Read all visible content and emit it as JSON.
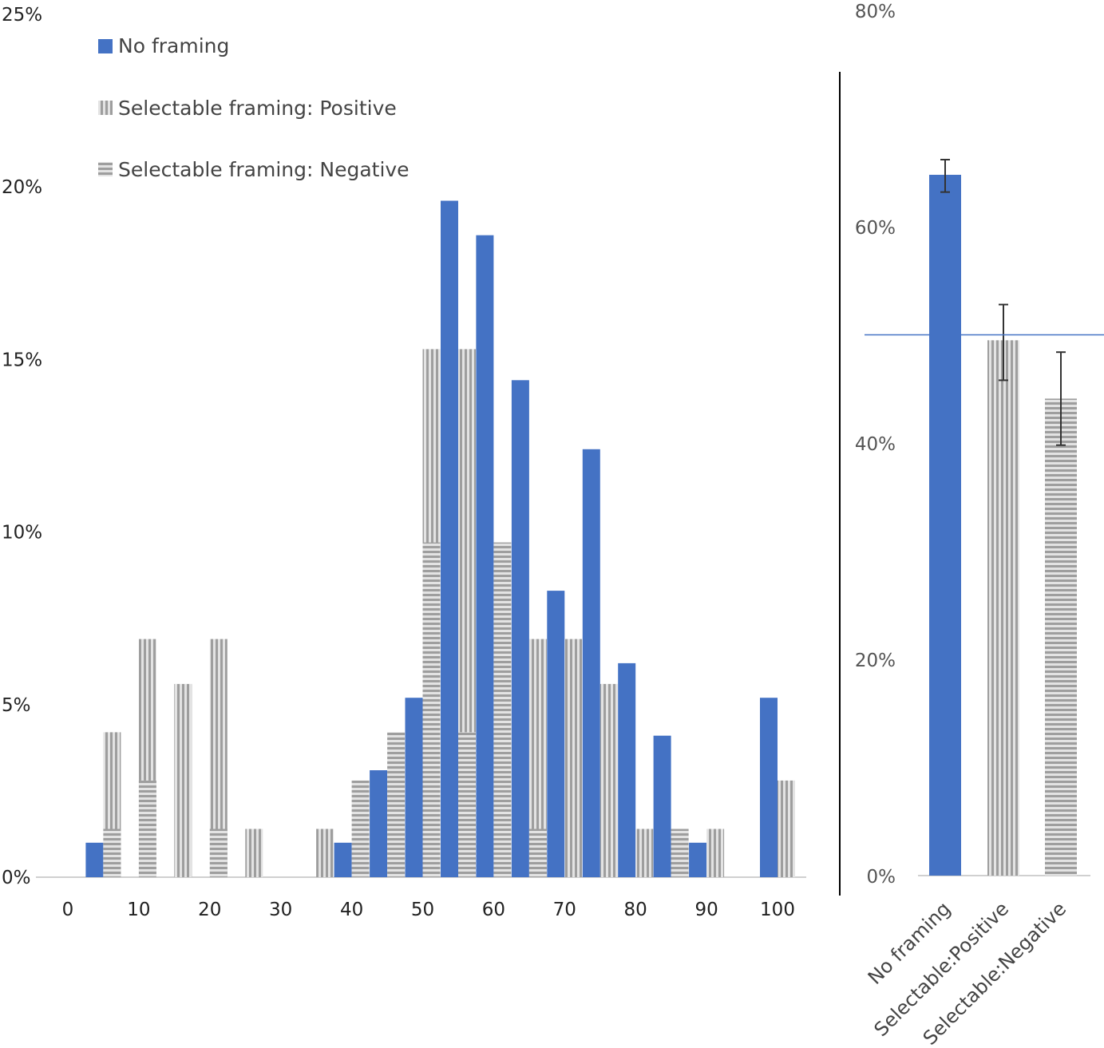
{
  "colors": {
    "no_framing": "#4472C4",
    "positive_fill": "#A6A6A6",
    "negative_fill": "#A6A6A6",
    "stripe_light": "#E3E3E3",
    "axis": "#D0D0D0",
    "reference_line": "#4472C4"
  },
  "chart_data": [
    {
      "type": "bar",
      "legend": {
        "placement": "top-left",
        "entries": [
          {
            "label": "No framing",
            "series": "no_framing"
          },
          {
            "label": "Selectable framing: Positive",
            "series": "positive"
          },
          {
            "label": "Selectable framing: Negative",
            "series": "negative"
          }
        ]
      },
      "x_ticks": [
        "0",
        "10",
        "20",
        "30",
        "40",
        "50",
        "60",
        "70",
        "80",
        "90",
        "100"
      ],
      "y_ticks": [
        "0%",
        "5%",
        "10%",
        "15%",
        "20%",
        "25%"
      ],
      "xlim": [
        0,
        105
      ],
      "ylim": [
        0,
        25
      ],
      "bin_centers": [
        5,
        10,
        15,
        20,
        25,
        30,
        35,
        40,
        45,
        50,
        55,
        60,
        65,
        70,
        75,
        80,
        85,
        90,
        95,
        100
      ],
      "series": [
        {
          "key": "no_framing",
          "values": [
            1.0,
            0,
            0,
            0,
            0,
            0,
            0,
            1.0,
            3.1,
            5.2,
            19.6,
            18.6,
            14.4,
            8.3,
            12.4,
            6.2,
            4.1,
            1.0,
            0,
            5.2
          ]
        },
        {
          "key": "positive",
          "values": [
            4.2,
            6.9,
            5.6,
            6.9,
            1.4,
            0,
            1.4,
            0,
            0,
            15.3,
            15.3,
            0,
            6.9,
            6.9,
            5.6,
            1.4,
            1.4,
            1.4,
            0,
            2.8
          ]
        },
        {
          "key": "negative",
          "values": [
            1.4,
            2.8,
            0,
            1.4,
            0,
            0,
            0,
            2.8,
            4.2,
            9.7,
            4.2,
            9.7,
            1.4,
            0,
            0,
            0,
            1.4,
            0,
            0,
            0
          ]
        }
      ]
    },
    {
      "type": "bar",
      "categories": [
        "No framing",
        "Selectable:Positive",
        "Selectable:Negative"
      ],
      "y_ticks": [
        "0%",
        "20%",
        "40%",
        "60%",
        "80%"
      ],
      "ylim": [
        0,
        80
      ],
      "series": [
        {
          "key": "summary",
          "values": [
            64.8,
            49.5,
            44.1
          ],
          "error_low": [
            63.2,
            45.8,
            39.8
          ],
          "error_high": [
            66.2,
            52.8,
            48.4
          ]
        }
      ],
      "reference_line": 50
    }
  ]
}
